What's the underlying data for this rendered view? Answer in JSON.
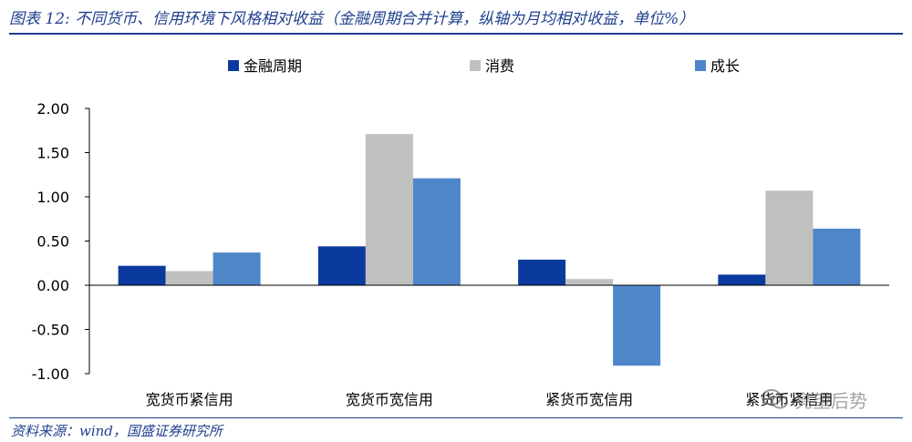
{
  "figure": {
    "title": "图表 12: 不同货币、信用环境下风格相对收益（金融周期合并计算，纵轴为月均相对收益，单位%）",
    "source": "资料来源：wind，国盛证券研究所",
    "watermark": "亮望后势",
    "watermark_icon": "wechat-icon"
  },
  "chart_data": {
    "type": "bar",
    "categories": [
      "宽货币紧信用",
      "宽货币宽信用",
      "紧货币宽信用",
      "紧货币紧信用"
    ],
    "series": [
      {
        "name": "金融周期",
        "color": "#0b3a9e",
        "values": [
          0.22,
          0.44,
          0.29,
          0.12
        ]
      },
      {
        "name": "消费",
        "color": "#c0c0c0",
        "values": [
          0.16,
          1.71,
          0.07,
          1.07
        ]
      },
      {
        "name": "成长",
        "color": "#4f86c9",
        "values": [
          0.37,
          1.21,
          -0.91,
          0.64
        ]
      }
    ],
    "ylim": [
      -1.0,
      2.0
    ],
    "yticks": [
      "2.00",
      "1.50",
      "1.00",
      "0.50",
      "0.00",
      "-0.50",
      "-1.00"
    ],
    "ytick_values": [
      2.0,
      1.5,
      1.0,
      0.5,
      0.0,
      -0.5,
      -1.0
    ],
    "legend_position": "top",
    "grid": false
  }
}
